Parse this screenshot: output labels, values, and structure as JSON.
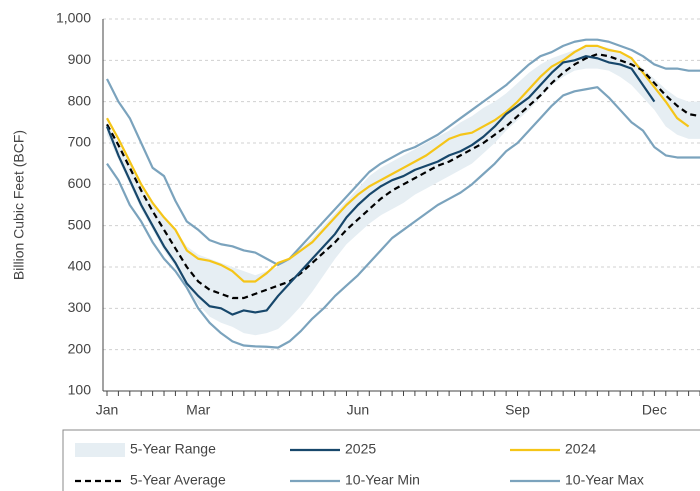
{
  "chart_data": {
    "type": "line",
    "y_label": "Billion Cubic Feet (BCF)",
    "categories": [
      "Jan",
      null,
      null,
      null,
      null,
      null,
      null,
      null,
      "Mar",
      null,
      null,
      null,
      null,
      null,
      null,
      null,
      null,
      null,
      null,
      null,
      null,
      null,
      "Jun",
      null,
      null,
      null,
      null,
      null,
      null,
      null,
      null,
      null,
      null,
      null,
      null,
      null,
      "Sep",
      null,
      null,
      null,
      null,
      null,
      null,
      null,
      null,
      null,
      null,
      null,
      "Dec",
      null,
      null,
      null,
      null
    ],
    "ylim": [
      100,
      1000
    ],
    "yticks": [
      100,
      200,
      300,
      400,
      500,
      600,
      700,
      800,
      900,
      {
        "value": 1000,
        "label": "1,000"
      }
    ],
    "grid": true,
    "range": {
      "name": "5-Year Range",
      "color": "#e6eef3",
      "high": [
        750,
        700,
        650,
        600,
        560,
        520,
        490,
        450,
        430,
        420,
        410,
        400,
        390,
        380,
        390,
        400,
        420,
        445,
        470,
        500,
        530,
        560,
        590,
        620,
        640,
        655,
        670,
        685,
        700,
        715,
        730,
        750,
        765,
        785,
        800,
        820,
        845,
        870,
        890,
        905,
        915,
        925,
        935,
        935,
        930,
        920,
        905,
        880,
        855,
        830,
        810,
        800,
        800
      ],
      "low": [
        720,
        660,
        600,
        540,
        490,
        440,
        400,
        350,
        310,
        280,
        265,
        255,
        240,
        235,
        240,
        250,
        275,
        305,
        340,
        380,
        420,
        455,
        480,
        505,
        525,
        540,
        555,
        575,
        590,
        605,
        620,
        635,
        650,
        675,
        700,
        730,
        755,
        780,
        810,
        840,
        860,
        875,
        880,
        880,
        875,
        860,
        840,
        810,
        780,
        740,
        720,
        710,
        710
      ]
    },
    "series": [
      {
        "name": "10-Year Min",
        "color": "#7ba3bd",
        "values": [
          650,
          610,
          550,
          510,
          460,
          420,
          390,
          350,
          300,
          265,
          240,
          220,
          210,
          208,
          207,
          205,
          220,
          245,
          275,
          300,
          330,
          355,
          380,
          410,
          440,
          470,
          490,
          510,
          530,
          550,
          565,
          580,
          600,
          625,
          650,
          680,
          700,
          730,
          760,
          790,
          815,
          825,
          830,
          835,
          810,
          780,
          750,
          730,
          690,
          670,
          665,
          665,
          665
        ]
      },
      {
        "name": "10-Year Max",
        "color": "#7ba3bd",
        "values": [
          855,
          800,
          760,
          700,
          640,
          620,
          560,
          510,
          490,
          465,
          455,
          450,
          440,
          435,
          420,
          405,
          420,
          450,
          480,
          510,
          540,
          570,
          600,
          630,
          650,
          665,
          680,
          690,
          705,
          720,
          740,
          760,
          780,
          800,
          820,
          840,
          865,
          890,
          910,
          920,
          935,
          945,
          950,
          950,
          945,
          935,
          925,
          910,
          890,
          880,
          880,
          875,
          875
        ]
      },
      {
        "name": "2024",
        "color": "#f5c518",
        "values": [
          760,
          710,
          655,
          600,
          555,
          520,
          490,
          440,
          420,
          415,
          405,
          390,
          365,
          365,
          385,
          410,
          420,
          440,
          460,
          490,
          520,
          550,
          575,
          595,
          610,
          625,
          640,
          655,
          670,
          690,
          710,
          720,
          725,
          740,
          755,
          775,
          800,
          830,
          860,
          885,
          900,
          920,
          935,
          935,
          925,
          920,
          905,
          870,
          835,
          800,
          760,
          740,
          null
        ]
      },
      {
        "name": "5-Year Average",
        "color": "#000000",
        "dashed": true,
        "values": [
          745,
          695,
          640,
          585,
          535,
          490,
          445,
          400,
          365,
          345,
          335,
          325,
          325,
          335,
          345,
          355,
          365,
          385,
          410,
          435,
          460,
          490,
          515,
          540,
          565,
          585,
          600,
          615,
          630,
          645,
          655,
          670,
          685,
          700,
          720,
          740,
          765,
          790,
          815,
          845,
          870,
          890,
          905,
          915,
          910,
          900,
          890,
          875,
          845,
          815,
          790,
          770,
          765
        ]
      },
      {
        "name": "2025",
        "color": "#17476b",
        "values": [
          740,
          670,
          610,
          550,
          500,
          450,
          410,
          360,
          330,
          305,
          300,
          285,
          295,
          290,
          295,
          330,
          360,
          390,
          420,
          450,
          480,
          520,
          550,
          575,
          595,
          610,
          620,
          635,
          645,
          655,
          670,
          680,
          695,
          715,
          740,
          770,
          790,
          810,
          840,
          870,
          895,
          900,
          910,
          905,
          895,
          890,
          880,
          840,
          800,
          null,
          null,
          null,
          null
        ]
      }
    ]
  }
}
